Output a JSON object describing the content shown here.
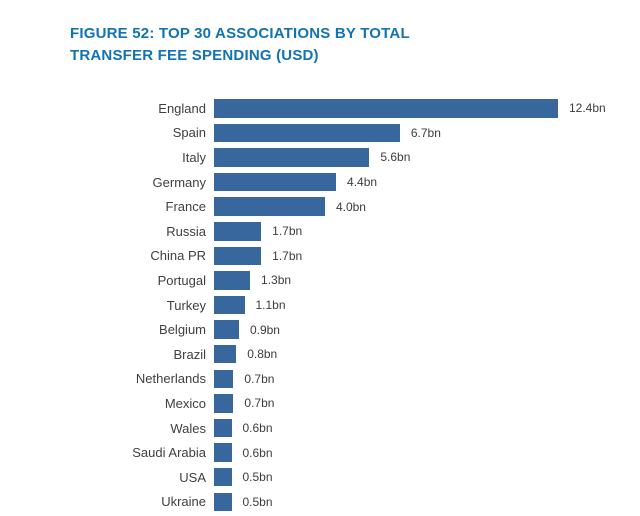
{
  "figure": {
    "title_line1": "FIGURE 52: TOP 30 ASSOCIATIONS BY TOTAL",
    "title_line2": "TRANSFER FEE SPENDING (USD)",
    "title_color": "#1173b4"
  },
  "chart_data": {
    "type": "bar",
    "orientation": "horizontal",
    "title": "FIGURE 52: TOP 30 ASSOCIATIONS BY TOTAL TRANSFER FEE SPENDING (USD)",
    "unit": "billion USD",
    "bar_color": "#38679e",
    "xlim": [
      0,
      12.4
    ],
    "grid": false,
    "legend": false,
    "categories": [
      "England",
      "Spain",
      "Italy",
      "Germany",
      "France",
      "Russia",
      "China PR",
      "Portugal",
      "Turkey",
      "Belgium",
      "Brazil",
      "Netherlands",
      "Mexico",
      "Wales",
      "Saudi Arabia",
      "USA",
      "Ukraine"
    ],
    "values": [
      12.4,
      6.7,
      5.6,
      4.4,
      4.0,
      1.7,
      1.7,
      1.3,
      1.1,
      0.9,
      0.8,
      0.7,
      0.7,
      0.6,
      0.6,
      0.5,
      0.5
    ],
    "value_labels": [
      "12.4bn",
      "6.7bn",
      "5.6bn",
      "4.4bn",
      "4.0bn",
      "1.7bn",
      "1.7bn",
      "1.3bn",
      "1.1bn",
      "0.9bn",
      "0.8bn",
      "0.7bn",
      "0.7bn",
      "0.6bn",
      "0.6bn",
      "0.5bn",
      "0.5bn"
    ],
    "partial_next_bar_visible": true
  }
}
